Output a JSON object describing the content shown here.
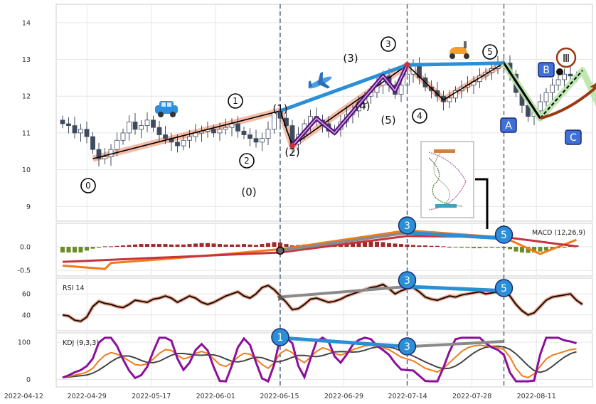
{
  "chart_data": {
    "type": "candlestick",
    "x_ticks": [
      "2022-04-12",
      "2022-04-29",
      "2022-05-17",
      "2022-06-01",
      "2022-06-15",
      "2022-06-29",
      "2022-07-14",
      "2022-07-28",
      "2022-08-11"
    ],
    "price": {
      "y_ticks": [
        "14",
        "13",
        "12",
        "11",
        "10",
        "9"
      ],
      "ylim": [
        8.6,
        14.5
      ],
      "closes": [
        11.25,
        11.2,
        11.0,
        11.1,
        10.9,
        10.55,
        10.3,
        10.35,
        10.55,
        10.8,
        11.0,
        11.3,
        11.1,
        11.2,
        11.35,
        11.15,
        10.95,
        10.85,
        10.75,
        10.65,
        10.8,
        10.9,
        11.0,
        11.05,
        11.1,
        11.0,
        11.1,
        11.15,
        11.25,
        11.05,
        10.95,
        10.85,
        10.75,
        10.85,
        11.1,
        11.55,
        11.4,
        11.2,
        10.7,
        10.95,
        11.25,
        11.45,
        11.35,
        11.25,
        11.05,
        11.1,
        11.3,
        11.5,
        11.6,
        11.8,
        12.0,
        12.1,
        12.3,
        12.55,
        12.3,
        12.05,
        12.3,
        12.6,
        12.85,
        12.5,
        12.25,
        12.15,
        12.0,
        11.85,
        11.95,
        12.15,
        12.25,
        12.3,
        12.4,
        12.55,
        12.65,
        12.75,
        12.85,
        12.9,
        12.6,
        12.1,
        11.75,
        11.45,
        11.6,
        11.85,
        12.1,
        12.3,
        12.45,
        12.6,
        12.55,
        12.5
      ],
      "x_start": 0.43,
      "x_step": 0.0061
    },
    "macd": {
      "label": "MACD (12,26,9)",
      "y_ticks": [
        "0.0",
        "-0.5"
      ],
      "ylim": [
        -0.62,
        0.5
      ]
    },
    "rsi": {
      "label": "RSI 14",
      "y_ticks": [
        "60",
        "40"
      ],
      "ylim": [
        25,
        75
      ]
    },
    "kdj": {
      "label": "KDJ (9,3,3)",
      "y_ticks": [
        "100",
        "0"
      ],
      "ylim": [
        -20,
        125
      ]
    },
    "elliott_labels": [
      "0",
      "1",
      "2",
      "3",
      "4",
      "5",
      "(1)",
      "(2)",
      "(3)",
      "(4)",
      "(5)",
      "(0)",
      "A",
      "B",
      "C",
      "Ⅲ"
    ],
    "colors": {
      "up": "#ffffff",
      "down": "#3f4a5e",
      "trend": "#f2a58a",
      "wave": "#5b1180",
      "blue_line": "#2a8fd6",
      "gray_line": "#8a8a8a",
      "macd_line": "#f07c1a",
      "signal_line": "#c8323c",
      "hist_pos": "#a02a2a",
      "hist_neg": "#6b8e23",
      "rsi": "#111111",
      "k_line": "#f07c1a",
      "d_line": "#444444",
      "j_line": "#8b0f9a",
      "abc": "#b8e6a8",
      "arrow": "#9a3a12"
    }
  }
}
